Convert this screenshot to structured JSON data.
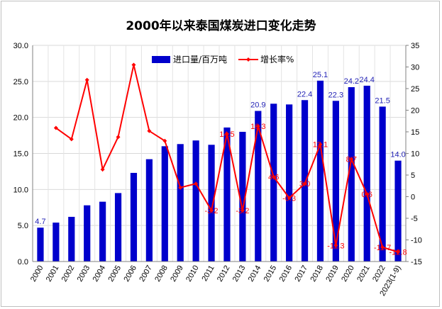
{
  "title": "2000年以来泰国煤炭进口变化走势",
  "chart_data": {
    "type": "bar+line",
    "title": "2000年以来泰国煤炭进口变化走势",
    "categories": [
      "2000",
      "2001",
      "2002",
      "2003",
      "2004",
      "2005",
      "2006",
      "2007",
      "2008",
      "2009",
      "2010",
      "2011",
      "2012",
      "2013",
      "2014",
      "2015",
      "2016",
      "2017",
      "2018",
      "2019",
      "2020",
      "2021",
      "2022",
      "2023(1-9)"
    ],
    "series": [
      {
        "name": "进口量/百万吨",
        "type": "bar",
        "axis": "left",
        "color": "#0000cc",
        "values": [
          4.7,
          5.4,
          6.2,
          7.8,
          8.3,
          9.5,
          12.3,
          14.2,
          16.0,
          16.3,
          16.8,
          16.2,
          18.6,
          18.0,
          20.9,
          21.9,
          21.8,
          22.4,
          25.1,
          22.3,
          24.2,
          24.4,
          21.5,
          14.0
        ],
        "labels": {
          "0": "4.7",
          "14": "20.9",
          "17": "22.4",
          "18": "25.1",
          "19": "22.3",
          "20": "24.2",
          "21": "24.4",
          "22": "21.5",
          "23": "14.0"
        }
      },
      {
        "name": "增长率%",
        "type": "line",
        "axis": "right",
        "color": "#ff0000",
        "values": [
          null,
          15.9,
          13.3,
          27.0,
          6.3,
          13.8,
          30.5,
          15.2,
          12.9,
          2.1,
          3.0,
          -3.2,
          14.5,
          -3.2,
          16.3,
          4.6,
          -0.3,
          3.0,
          12.1,
          -11.3,
          8.7,
          0.6,
          -11.7,
          -12.8
        ],
        "labels": {
          "12": "14.5",
          "11": "-3.2",
          "13": "-3.2",
          "14": "16.3",
          "15": "4.6",
          "16": "-0.3",
          "17": "3.0",
          "18": "12.1",
          "19": "-11.3",
          "20": "8.7",
          "21": "0.6",
          "22": "-11.7",
          "23": "-12.8"
        }
      }
    ],
    "y_left": {
      "min": 0,
      "max": 30,
      "step": 5,
      "ticks": [
        "0.0",
        "5.0",
        "10.0",
        "15.0",
        "20.0",
        "25.0",
        "30.0"
      ]
    },
    "y_right": {
      "min": -15,
      "max": 35,
      "step": 5,
      "ticks": [
        "-15",
        "-10",
        "-5",
        "0",
        "5",
        "10",
        "15",
        "20",
        "25",
        "30",
        "35"
      ]
    },
    "grid": true,
    "legend": "top"
  }
}
